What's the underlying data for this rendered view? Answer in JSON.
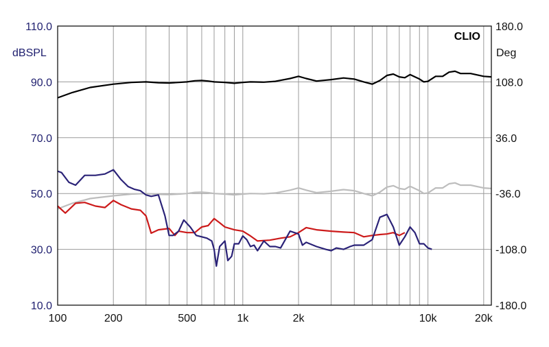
{
  "chart_data": {
    "type": "line",
    "brand": "CLIO",
    "ylabel_left": "dBSPL",
    "ylabel_right": "Deg",
    "x_scale": "log",
    "xlim": [
      100,
      22000
    ],
    "ylim_left": [
      10,
      110
    ],
    "ylim_right": [
      -180,
      180
    ],
    "grid": true,
    "x_ticks": [
      {
        "value": 100,
        "label": "100"
      },
      {
        "value": 200,
        "label": "200"
      },
      {
        "value": 500,
        "label": "500"
      },
      {
        "value": 1000,
        "label": "1k"
      },
      {
        "value": 2000,
        "label": "2k"
      },
      {
        "value": 10000,
        "label": "10k"
      },
      {
        "value": 20000,
        "label": "20k"
      }
    ],
    "y_ticks_left": [
      {
        "value": 10,
        "label": "10.0"
      },
      {
        "value": 30,
        "label": "30.0"
      },
      {
        "value": 50,
        "label": "50.0"
      },
      {
        "value": 70,
        "label": "70.0"
      },
      {
        "value": 90,
        "label": "90.0"
      },
      {
        "value": 110,
        "label": "110.0"
      }
    ],
    "y_ticks_right": [
      {
        "value": -180,
        "label": "-180.0"
      },
      {
        "value": -108,
        "label": "-108.0"
      },
      {
        "value": -36,
        "label": "-36.0"
      },
      {
        "value": 36,
        "label": "36.0"
      },
      {
        "value": 108,
        "label": "108.0"
      },
      {
        "value": 180,
        "label": "180.0"
      }
    ],
    "series": [
      {
        "color": "#000000",
        "axis": "left",
        "x": [
          100,
          120,
          150,
          200,
          250,
          300,
          350,
          400,
          450,
          500,
          550,
          600,
          650,
          700,
          800,
          900,
          1000,
          1100,
          1300,
          1500,
          1800,
          2000,
          2200,
          2500,
          3000,
          3500,
          4000,
          4500,
          5000,
          5500,
          6000,
          6500,
          7000,
          7500,
          8000,
          9000,
          9500,
          10000,
          11000,
          12000,
          13000,
          14000,
          15000,
          17000,
          20000,
          22000
        ],
        "y": [
          84.3,
          86.2,
          88.0,
          89.2,
          89.8,
          90.0,
          89.7,
          89.6,
          89.8,
          90.0,
          90.4,
          90.5,
          90.3,
          90.0,
          89.8,
          89.5,
          89.8,
          90.0,
          89.9,
          90.2,
          91.2,
          92.0,
          91.2,
          90.3,
          90.8,
          91.4,
          91.0,
          90.0,
          89.2,
          90.5,
          92.3,
          92.8,
          91.8,
          91.5,
          92.6,
          91.0,
          90.0,
          90.2,
          92.0,
          92.0,
          93.5,
          93.8,
          93.0,
          93.0,
          92.0,
          91.8
        ]
      },
      {
        "color": "#bdbdbd",
        "axis": "left",
        "x": [
          100,
          120,
          150,
          200,
          250,
          300,
          350,
          400,
          450,
          500,
          550,
          600,
          650,
          700,
          800,
          900,
          1000,
          1100,
          1300,
          1500,
          1800,
          2000,
          2200,
          2500,
          3000,
          3500,
          4000,
          4500,
          5000,
          5500,
          6000,
          6500,
          7000,
          7500,
          8000,
          9000,
          9500,
          10000,
          11000,
          12000,
          13000,
          14000,
          15000,
          17000,
          20000,
          22000
        ],
        "y": [
          44.5,
          46.5,
          48.2,
          49.2,
          49.8,
          50.0,
          49.7,
          49.6,
          49.8,
          50.0,
          50.4,
          50.5,
          50.3,
          50.0,
          49.8,
          49.5,
          49.8,
          50.0,
          49.9,
          50.2,
          51.2,
          52.0,
          51.2,
          50.3,
          50.8,
          51.4,
          51.0,
          50.0,
          49.2,
          50.5,
          52.3,
          52.8,
          51.8,
          51.5,
          52.6,
          51.0,
          50.0,
          50.2,
          52.0,
          52.0,
          53.5,
          53.8,
          53.0,
          53.0,
          52.0,
          51.8
        ]
      },
      {
        "color": "#cc1a1a",
        "axis": "left",
        "x": [
          100,
          110,
          125,
          140,
          160,
          180,
          200,
          220,
          250,
          280,
          300,
          320,
          350,
          400,
          430,
          450,
          500,
          550,
          600,
          650,
          700,
          750,
          800,
          900,
          1000,
          1100,
          1200,
          1400,
          1600,
          1800,
          2000,
          2200,
          2500,
          3000,
          3500,
          4000,
          4500,
          5000,
          5500,
          6000,
          6500,
          7000,
          7500
        ],
        "y": [
          45.5,
          43.0,
          46.5,
          46.8,
          45.5,
          45.0,
          47.5,
          46.0,
          44.5,
          44.0,
          42.0,
          35.8,
          37.0,
          37.5,
          35.0,
          36.5,
          36.0,
          36.0,
          38.0,
          38.5,
          41.0,
          39.5,
          38.0,
          37.0,
          36.5,
          34.8,
          33.0,
          33.3,
          34.0,
          34.5,
          36.0,
          37.8,
          37.0,
          36.5,
          36.2,
          36.0,
          34.5,
          35.0,
          35.3,
          35.5,
          36.0,
          35.0,
          36.0
        ]
      },
      {
        "color": "#2a2277",
        "axis": "left",
        "x": [
          100,
          105,
          115,
          125,
          140,
          160,
          180,
          200,
          220,
          240,
          260,
          280,
          300,
          320,
          350,
          380,
          400,
          420,
          450,
          480,
          520,
          560,
          600,
          640,
          680,
          700,
          720,
          750,
          800,
          830,
          870,
          900,
          950,
          1000,
          1050,
          1100,
          1150,
          1200,
          1300,
          1400,
          1500,
          1600,
          1800,
          1900,
          2000,
          2100,
          2200,
          2500,
          2800,
          3000,
          3200,
          3500,
          3800,
          4000,
          4500,
          5000,
          5500,
          6000,
          6500,
          7000,
          7500,
          8000,
          8500,
          9000,
          9500,
          10000,
          10500
        ],
        "y": [
          58.0,
          57.5,
          54.0,
          53.0,
          56.5,
          56.5,
          57.0,
          58.5,
          55.0,
          52.5,
          51.5,
          51.0,
          49.5,
          49.0,
          49.5,
          42.0,
          35.0,
          35.0,
          36.5,
          40.5,
          38.0,
          35.0,
          34.5,
          34.0,
          33.0,
          30.0,
          24.0,
          31.0,
          33.0,
          26.0,
          27.5,
          32.0,
          32.0,
          34.8,
          33.5,
          31.0,
          31.5,
          29.5,
          33.0,
          31.0,
          31.0,
          30.5,
          36.5,
          36.0,
          35.5,
          31.5,
          32.5,
          31.0,
          30.0,
          29.5,
          30.5,
          30.0,
          31.0,
          31.5,
          31.5,
          33.5,
          41.5,
          42.5,
          38.0,
          31.5,
          34.5,
          38.0,
          36.0,
          32.0,
          32.0,
          30.5,
          30.0
        ]
      }
    ]
  }
}
